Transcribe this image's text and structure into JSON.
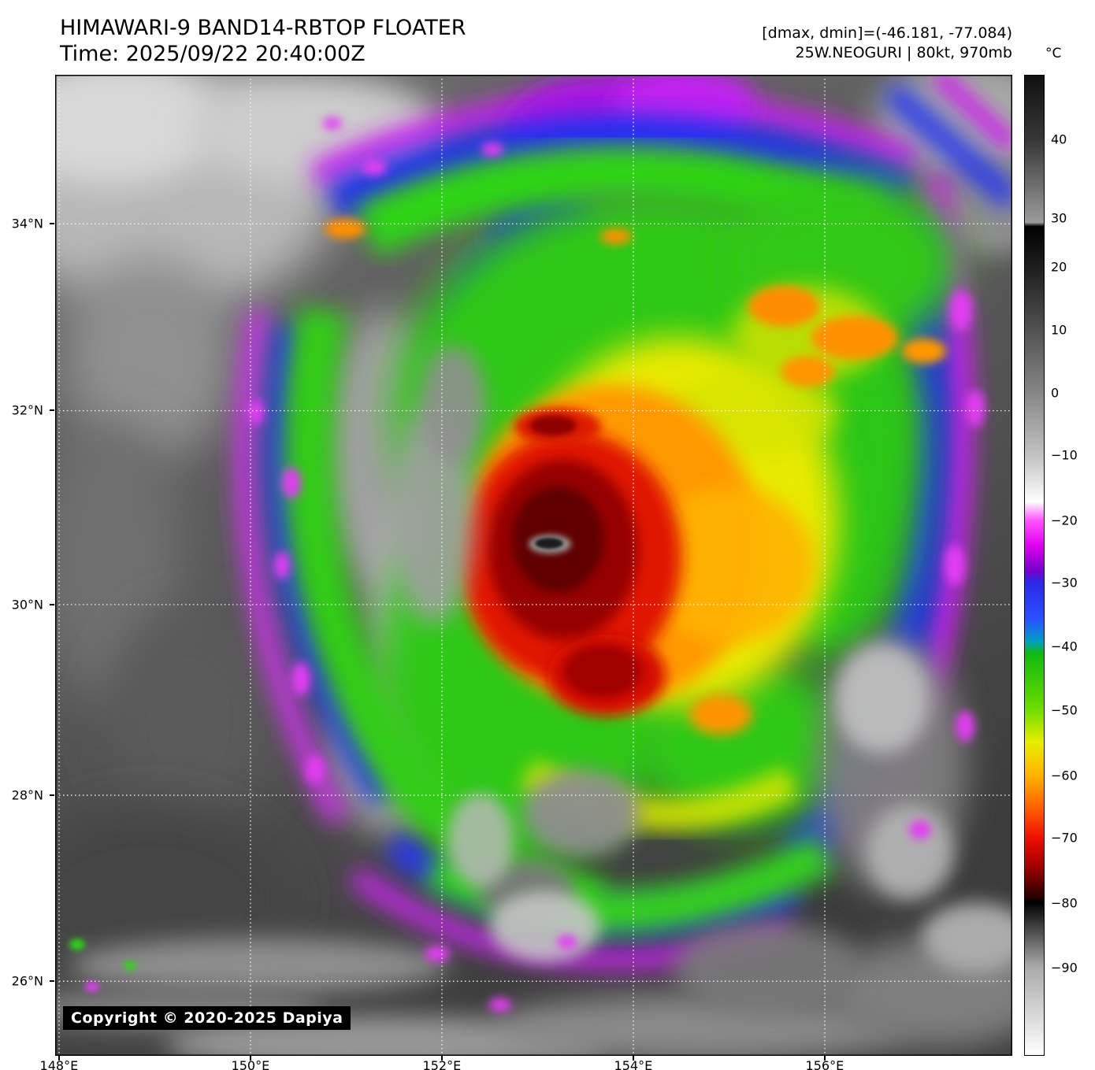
{
  "header": {
    "title": "HIMAWARI-9 BAND14-RBTOP FLOATER",
    "time": "Time: 2025/09/22 20:40:00Z",
    "dmax_dmin": "[dmax, dmin]=(-46.181, -77.084)",
    "storm_info": "25W.NEOGURI | 80kt, 970mb"
  },
  "colorbar": {
    "unit": "°C",
    "ticks": [
      "40",
      "30",
      "20",
      "10",
      "0",
      "−10",
      "−20",
      "−30",
      "−40",
      "−50",
      "−60",
      "−70",
      "−80",
      "−90"
    ]
  },
  "map": {
    "lat_labels": [
      "34°N",
      "32°N",
      "30°N",
      "28°N",
      "26°N"
    ],
    "lon_labels": [
      "148°E",
      "150°E",
      "152°E",
      "154°E",
      "156°E"
    ],
    "copyright": "Copyright © 2020-2025 Dapiya"
  }
}
